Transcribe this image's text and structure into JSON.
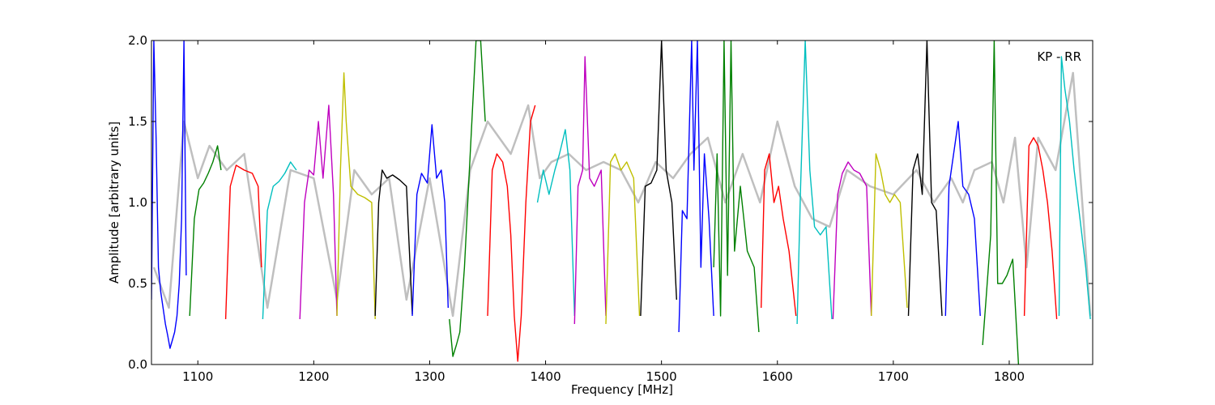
{
  "chart_data": {
    "type": "line",
    "title": "",
    "xlabel": "Frequency [MHz]",
    "ylabel": "Amplitude [arbitrary units]",
    "xlim": [
      1060,
      1872
    ],
    "ylim": [
      0.0,
      2.0
    ],
    "x_ticks": [
      1100,
      1200,
      1300,
      1400,
      1500,
      1600,
      1700,
      1800
    ],
    "x_tick_labels": [
      "1100",
      "1200",
      "1300",
      "1400",
      "1500",
      "1600",
      "1700",
      "1800"
    ],
    "y_ticks": [
      0.0,
      0.5,
      1.0,
      1.5,
      2.0
    ],
    "y_tick_labels": [
      "0.0",
      "0.5",
      "1.0",
      "1.5",
      "2.0"
    ],
    "grid": false,
    "annotation": "KP - RR",
    "annotation_position": "top-right",
    "background_trace_color": "#bfbfbf",
    "background_trace": {
      "x": [
        1062,
        1075,
        1088,
        1100,
        1110,
        1125,
        1140,
        1160,
        1180,
        1200,
        1220,
        1235,
        1250,
        1265,
        1280,
        1300,
        1320,
        1335,
        1350,
        1360,
        1370,
        1385,
        1395,
        1405,
        1420,
        1435,
        1450,
        1465,
        1480,
        1495,
        1510,
        1525,
        1540,
        1555,
        1570,
        1585,
        1600,
        1615,
        1630,
        1645,
        1660,
        1680,
        1700,
        1720,
        1735,
        1750,
        1760,
        1770,
        1785,
        1795,
        1805,
        1815,
        1825,
        1840,
        1855,
        1870
      ],
      "y": [
        0.6,
        0.35,
        1.5,
        1.15,
        1.35,
        1.2,
        1.3,
        0.35,
        1.2,
        1.15,
        0.4,
        1.2,
        1.05,
        1.15,
        0.4,
        1.15,
        0.3,
        1.2,
        1.5,
        1.4,
        1.3,
        1.6,
        1.15,
        1.25,
        1.3,
        1.2,
        1.25,
        1.2,
        1.0,
        1.25,
        1.15,
        1.3,
        1.4,
        1.0,
        1.3,
        1.0,
        1.5,
        1.1,
        0.9,
        0.85,
        1.2,
        1.1,
        1.05,
        1.2,
        1.0,
        1.15,
        1.0,
        1.2,
        1.25,
        1.0,
        1.4,
        0.6,
        1.4,
        1.2,
        1.8,
        0.3
      ]
    },
    "series": [
      {
        "color": "#0000ff",
        "x": [
          1060,
          1062,
          1064,
          1066,
          1068,
          1070,
          1072,
          1074,
          1076,
          1078,
          1080,
          1082,
          1084,
          1086,
          1088,
          1090
        ],
        "y": [
          0.4,
          2.0,
          1.4,
          0.6,
          0.45,
          0.35,
          0.25,
          0.18,
          0.1,
          0.15,
          0.2,
          0.3,
          0.5,
          0.9,
          2.0,
          0.55
        ]
      },
      {
        "color": "#008000",
        "x": [
          1093,
          1097,
          1101,
          1105,
          1109,
          1113,
          1117,
          1120
        ],
        "y": [
          0.3,
          0.9,
          1.08,
          1.12,
          1.18,
          1.25,
          1.35,
          1.2
        ]
      },
      {
        "color": "#ff0000",
        "x": [
          1124,
          1128,
          1133,
          1140,
          1147,
          1152,
          1155
        ],
        "y": [
          0.28,
          1.1,
          1.23,
          1.2,
          1.18,
          1.1,
          0.6
        ]
      },
      {
        "color": "#00bfbf",
        "x": [
          1156,
          1160,
          1165,
          1170,
          1175,
          1180,
          1185
        ],
        "y": [
          0.28,
          0.95,
          1.1,
          1.13,
          1.18,
          1.25,
          1.2
        ]
      },
      {
        "color": "#bf00bf",
        "x": [
          1188,
          1192,
          1196,
          1200,
          1204,
          1208,
          1213,
          1217,
          1220
        ],
        "y": [
          0.28,
          1.0,
          1.2,
          1.17,
          1.5,
          1.15,
          1.6,
          1.05,
          0.3
        ]
      },
      {
        "color": "#bfbf00",
        "x": [
          1220,
          1223,
          1226,
          1228,
          1232,
          1238,
          1244,
          1250,
          1253
        ],
        "y": [
          0.3,
          1.2,
          1.8,
          1.5,
          1.1,
          1.05,
          1.03,
          1.0,
          0.28
        ]
      },
      {
        "color": "#000000",
        "x": [
          1253,
          1256,
          1259,
          1263,
          1268,
          1274,
          1280,
          1285
        ],
        "y": [
          0.3,
          1.0,
          1.2,
          1.15,
          1.17,
          1.14,
          1.1,
          0.31
        ]
      },
      {
        "color": "#0000ff",
        "x": [
          1285,
          1289,
          1293,
          1298,
          1302,
          1306,
          1310,
          1313,
          1316
        ],
        "y": [
          0.3,
          1.05,
          1.18,
          1.12,
          1.48,
          1.15,
          1.2,
          1.0,
          0.35
        ]
      },
      {
        "color": "#008000",
        "x": [
          1317,
          1320,
          1323,
          1326,
          1330,
          1335,
          1340,
          1344,
          1348
        ],
        "y": [
          0.28,
          0.05,
          0.12,
          0.2,
          0.6,
          1.3,
          2.0,
          2.0,
          1.5
        ]
      },
      {
        "color": "#ff0000",
        "x": [
          1350,
          1354,
          1358,
          1363,
          1367,
          1370,
          1373,
          1376,
          1379,
          1383,
          1387,
          1391
        ],
        "y": [
          0.3,
          1.2,
          1.3,
          1.25,
          1.1,
          0.8,
          0.3,
          0.02,
          0.3,
          1.0,
          1.5,
          1.6
        ]
      },
      {
        "color": "#00bfbf",
        "x": [
          1393,
          1398,
          1403,
          1408,
          1412,
          1417,
          1421,
          1425
        ],
        "y": [
          1.0,
          1.2,
          1.05,
          1.2,
          1.3,
          1.45,
          1.2,
          0.3
        ]
      },
      {
        "color": "#bf00bf",
        "x": [
          1425,
          1428,
          1432,
          1434,
          1438,
          1442,
          1448,
          1452
        ],
        "y": [
          0.25,
          1.1,
          1.2,
          1.9,
          1.15,
          1.1,
          1.2,
          0.3
        ]
      },
      {
        "color": "#bfbf00",
        "x": [
          1452,
          1456,
          1460,
          1465,
          1470,
          1476,
          1481
        ],
        "y": [
          0.25,
          1.25,
          1.3,
          1.2,
          1.25,
          1.15,
          0.3
        ]
      },
      {
        "color": "#000000",
        "x": [
          1482,
          1486,
          1491,
          1496,
          1500,
          1504,
          1509,
          1513
        ],
        "y": [
          0.3,
          1.1,
          1.12,
          1.2,
          2.0,
          1.2,
          1.0,
          0.4
        ]
      },
      {
        "color": "#0000ff",
        "x": [
          1515,
          1518,
          1522,
          1526,
          1528,
          1531,
          1534,
          1537,
          1541,
          1545
        ],
        "y": [
          0.2,
          0.95,
          0.9,
          2.0,
          1.2,
          2.0,
          0.6,
          1.3,
          0.9,
          0.3
        ]
      },
      {
        "color": "#008000",
        "x": [
          1545,
          1548,
          1551,
          1554,
          1557,
          1560,
          1563,
          1568,
          1574,
          1580,
          1584
        ],
        "y": [
          0.6,
          1.3,
          0.3,
          2.0,
          0.55,
          2.0,
          0.7,
          1.1,
          0.7,
          0.6,
          0.2
        ]
      },
      {
        "color": "#ff0000",
        "x": [
          1586,
          1589,
          1593,
          1597,
          1601,
          1605,
          1610,
          1616
        ],
        "y": [
          0.35,
          1.2,
          1.3,
          1.0,
          1.1,
          0.9,
          0.7,
          0.3
        ]
      },
      {
        "color": "#00bfbf",
        "x": [
          1617,
          1620,
          1624,
          1628,
          1632,
          1637,
          1642,
          1647
        ],
        "y": [
          0.25,
          1.1,
          2.0,
          1.2,
          0.85,
          0.8,
          0.85,
          0.28
        ]
      },
      {
        "color": "#bf00bf",
        "x": [
          1648,
          1652,
          1656,
          1661,
          1666,
          1671,
          1677,
          1681
        ],
        "y": [
          0.28,
          1.05,
          1.18,
          1.25,
          1.2,
          1.18,
          1.1,
          0.3
        ]
      },
      {
        "color": "#bfbf00",
        "x": [
          1681,
          1685,
          1689,
          1693,
          1697,
          1701,
          1706,
          1712
        ],
        "y": [
          0.3,
          1.3,
          1.2,
          1.05,
          1.0,
          1.05,
          1.0,
          0.35
        ]
      },
      {
        "color": "#000000",
        "x": [
          1713,
          1717,
          1721,
          1725,
          1729,
          1733,
          1737,
          1742
        ],
        "y": [
          0.3,
          1.2,
          1.3,
          1.05,
          2.0,
          1.0,
          0.95,
          0.3
        ]
      },
      {
        "color": "#0000ff",
        "x": [
          1745,
          1748,
          1752,
          1756,
          1760,
          1765,
          1770,
          1775
        ],
        "y": [
          0.3,
          1.1,
          1.3,
          1.5,
          1.1,
          1.05,
          0.9,
          0.3
        ]
      },
      {
        "color": "#008000",
        "x": [
          1777,
          1780,
          1784,
          1787,
          1790,
          1794,
          1798,
          1803,
          1808
        ],
        "y": [
          0.12,
          0.4,
          0.8,
          2.0,
          0.5,
          0.5,
          0.55,
          0.65,
          0.0
        ]
      },
      {
        "color": "#ff0000",
        "x": [
          1813,
          1817,
          1821,
          1825,
          1829,
          1833,
          1837,
          1841
        ],
        "y": [
          0.3,
          1.35,
          1.4,
          1.35,
          1.2,
          1.0,
          0.7,
          0.28
        ]
      },
      {
        "color": "#00bfbf",
        "x": [
          1843,
          1845,
          1848,
          1852,
          1856,
          1861,
          1866,
          1870
        ],
        "y": [
          0.3,
          1.9,
          1.7,
          1.5,
          1.2,
          0.9,
          0.6,
          0.28
        ]
      }
    ]
  }
}
